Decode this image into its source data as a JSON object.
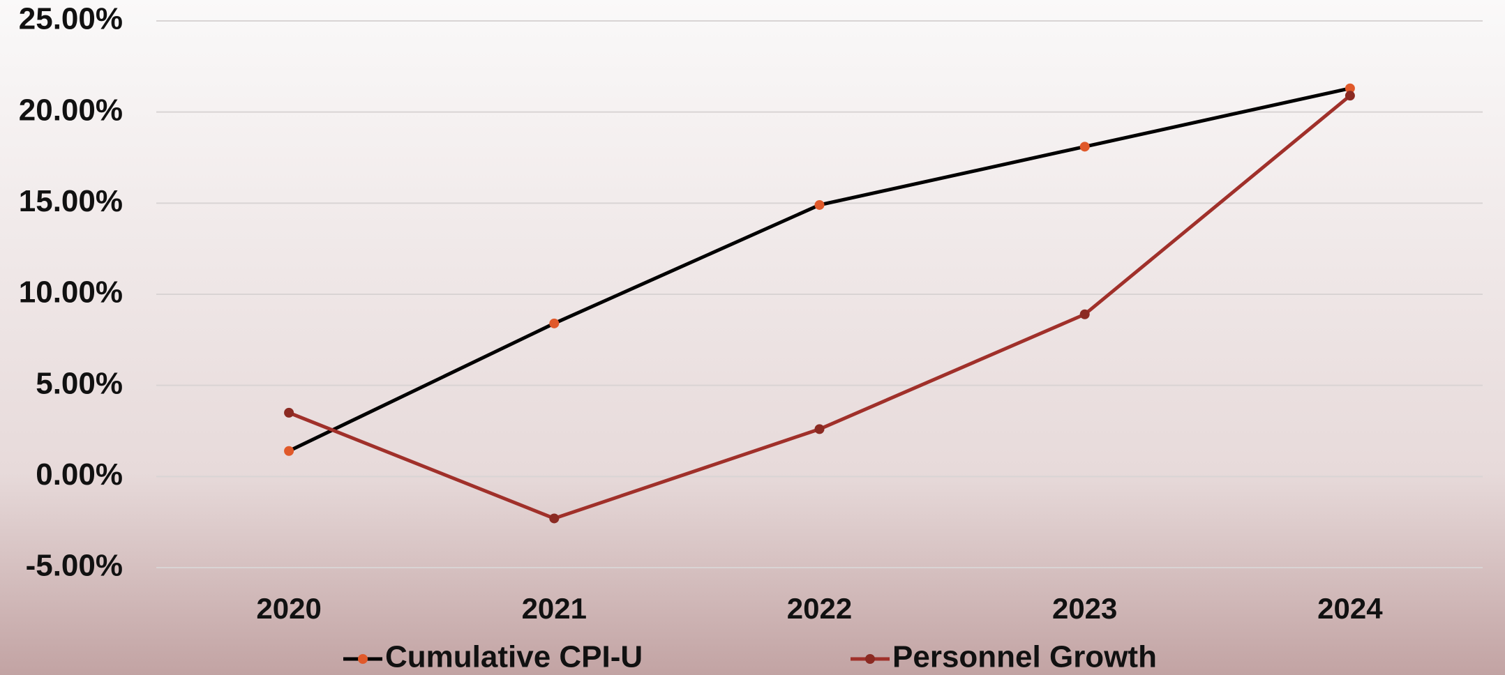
{
  "chart_data": {
    "type": "line",
    "categories": [
      "2020",
      "2021",
      "2022",
      "2023",
      "2024"
    ],
    "series": [
      {
        "name": "Cumulative CPI-U",
        "color": "#000000",
        "marker_color": "#e0592a",
        "values": [
          1.4,
          8.4,
          14.9,
          18.1,
          21.3
        ]
      },
      {
        "name": "Personnel Growth",
        "color": "#a0302a",
        "marker_color": "#8b2a22",
        "values": [
          3.5,
          -2.3,
          2.6,
          8.9,
          20.9
        ]
      }
    ],
    "ylim": [
      -5,
      25
    ],
    "yticks": [
      {
        "value": -5,
        "label": "-5.00%"
      },
      {
        "value": 0,
        "label": "0.00%"
      },
      {
        "value": 5,
        "label": "5.00%"
      },
      {
        "value": 10,
        "label": "10.00%"
      },
      {
        "value": 15,
        "label": "15.00%"
      },
      {
        "value": 20,
        "label": "20.00%"
      },
      {
        "value": 25,
        "label": "25.00%"
      }
    ],
    "grid": true,
    "legend": "bottom"
  }
}
